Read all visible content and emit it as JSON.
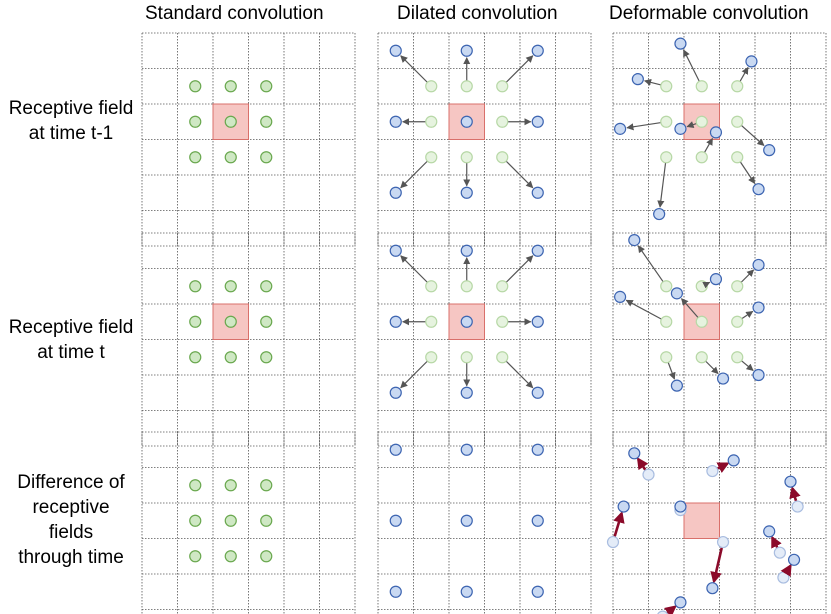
{
  "columns": {
    "standard": "Standard convolution",
    "dilated": "Dilated convolution",
    "deformable": "Deformable convolution"
  },
  "rows": {
    "t_minus_1": [
      "Receptive field",
      "at time t-1"
    ],
    "t": [
      "Receptive field",
      "at time t"
    ],
    "difference": [
      "Difference of",
      "receptive",
      "fields",
      "through time"
    ]
  },
  "colors": {
    "grid_line": "#555555",
    "center_fill": "#f6c6c3",
    "center_stroke": "#d9706b",
    "green_fill": "#cfe8c4",
    "green_stroke": "#6aa84f",
    "faded_green_fill": "#e6f3df",
    "faded_green_stroke": "#b7d8a6",
    "blue_fill": "#c9d9f2",
    "blue_stroke": "#3c64b1",
    "faded_blue_fill": "#e4ecf8",
    "faded_blue_stroke": "#a9bde0",
    "arrow_gray": "#555555",
    "arrow_red": "#8b0a2a"
  }
}
